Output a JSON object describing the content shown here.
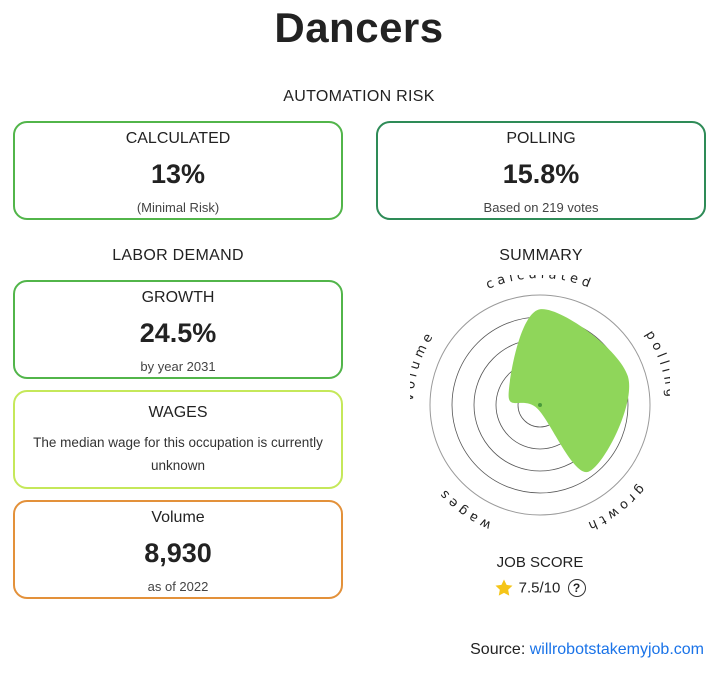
{
  "page": {
    "title": "Dancers"
  },
  "automation_risk": {
    "heading": "AUTOMATION RISK",
    "calculated": {
      "label": "CALCULATED",
      "value": "13%",
      "sub": "(Minimal Risk)"
    },
    "polling": {
      "label": "POLLING",
      "value": "15.8%",
      "sub": "Based on 219 votes"
    }
  },
  "labor_demand": {
    "heading": "LABOR DEMAND",
    "growth": {
      "label": "GROWTH",
      "value": "24.5%",
      "sub": "by year 2031"
    },
    "wages": {
      "label": "WAGES",
      "text": "The median wage for this occupation is currently unknown"
    },
    "volume": {
      "label": "Volume",
      "value": "8,930",
      "sub": "as of 2022"
    }
  },
  "summary": {
    "heading": "SUMMARY",
    "axes": [
      "calculated",
      "polling",
      "growth",
      "wages",
      "volume"
    ],
    "levels": [
      0.87,
      0.84,
      0.75,
      0.0,
      0.3
    ],
    "fill_color": "#8fd65a"
  },
  "job_score": {
    "label": "JOB SCORE",
    "value": "7.5/10",
    "star_icon": "star-icon",
    "help_icon": "help-icon",
    "help_glyph": "?"
  },
  "source": {
    "prefix": "Source:",
    "link_text": "willrobotstakemyjob.com"
  },
  "colors": {
    "calculated_border": "#52b54a",
    "polling_border": "#2e8b57",
    "growth_border": "#52b54a",
    "wages_border": "#c5e85a",
    "volume_border": "#e3913a",
    "link": "#1a73e8",
    "star": "#f5c518"
  }
}
